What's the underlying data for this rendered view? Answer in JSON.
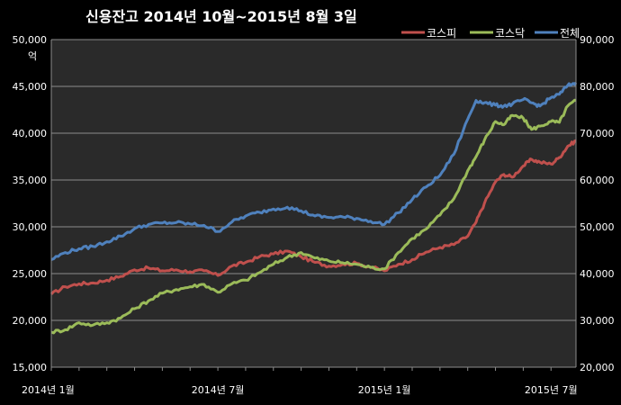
{
  "chart_data": {
    "type": "line",
    "title": "신용잔고 2014년 10월~2015년 8월 3일",
    "ylabel_left": "억",
    "ylim_left": [
      15000,
      50000
    ],
    "ylim_right": [
      20000,
      90000
    ],
    "yticks_left": [
      "15,000",
      "20,000",
      "25,000",
      "30,000",
      "35,000",
      "40,000",
      "45,000",
      "50,000"
    ],
    "yticks_right": [
      "20,000",
      "30,000",
      "40,000",
      "50,000",
      "60,000",
      "70,000",
      "80,000",
      "90,000"
    ],
    "xticks": [
      "2014년 1월",
      "2014년 7월",
      "2015년 1월",
      "2015년 7월"
    ],
    "xtick_positions": [
      0,
      6,
      12,
      18
    ],
    "xlim": [
      0,
      18.9
    ],
    "grid": true,
    "legend_position": "top-right",
    "series": [
      {
        "name": "코스피",
        "color": "#c0504d",
        "axis": "left",
        "x": [
          0,
          0.5,
          1,
          1.5,
          2,
          2.5,
          3,
          3.5,
          4,
          4.5,
          5,
          5.5,
          6,
          6.5,
          7,
          7.5,
          8,
          8.5,
          9,
          9.5,
          10,
          10.5,
          11,
          11.5,
          12,
          12.5,
          13,
          13.5,
          14,
          14.5,
          15,
          15.3,
          15.6,
          16,
          16.3,
          16.6,
          17,
          17.3,
          17.6,
          18,
          18.3,
          18.6,
          18.9
        ],
        "y": [
          22800,
          23600,
          23900,
          24000,
          24300,
          24700,
          25400,
          25600,
          25300,
          25400,
          25200,
          25300,
          24800,
          25800,
          26200,
          26800,
          27100,
          27400,
          26800,
          26200,
          25800,
          26000,
          26100,
          25700,
          25300,
          26000,
          26500,
          27300,
          27800,
          28100,
          29000,
          30500,
          32500,
          34800,
          35600,
          35300,
          36500,
          37200,
          36900,
          36700,
          37400,
          38600,
          39200
        ]
      },
      {
        "name": "코스닥",
        "color": "#9bbb59",
        "axis": "right",
        "x": [
          0,
          0.5,
          1,
          1.5,
          2,
          2.5,
          3,
          3.5,
          4,
          4.5,
          5,
          5.5,
          6,
          6.5,
          7,
          7.5,
          8,
          8.5,
          9,
          9.5,
          10,
          10.5,
          11,
          11.5,
          12,
          12.5,
          13,
          13.5,
          14,
          14.5,
          15,
          15.3,
          15.6,
          16,
          16.3,
          16.6,
          17,
          17.3,
          17.6,
          18,
          18.3,
          18.6,
          18.9
        ],
        "y": [
          27500,
          28000,
          29500,
          29000,
          29500,
          30500,
          32500,
          34200,
          35800,
          36600,
          37200,
          37700,
          36000,
          37800,
          38600,
          40200,
          42000,
          43500,
          44500,
          43300,
          42700,
          42300,
          42000,
          41300,
          41000,
          44500,
          47500,
          49500,
          52500,
          56000,
          62000,
          65000,
          68500,
          72500,
          71800,
          73800,
          73200,
          70800,
          71500,
          72500,
          72300,
          75800,
          77000
        ]
      },
      {
        "name": "전체",
        "color": "#4f81bd",
        "axis": "right",
        "x": [
          0,
          0.5,
          1,
          1.5,
          2,
          2.5,
          3,
          3.5,
          4,
          4.5,
          5,
          5.5,
          6,
          6.5,
          7,
          7.5,
          8,
          8.5,
          9,
          9.5,
          10,
          10.5,
          11,
          11.5,
          12,
          12.5,
          13,
          13.5,
          14,
          14.5,
          15,
          15.3,
          15.6,
          16,
          16.3,
          16.6,
          17,
          17.3,
          17.6,
          18,
          18.3,
          18.6,
          18.9
        ],
        "y": [
          43000,
          44500,
          45300,
          45800,
          46800,
          48000,
          49600,
          50500,
          50800,
          50900,
          50600,
          50300,
          49000,
          51000,
          52300,
          53100,
          53800,
          54200,
          53400,
          52300,
          52000,
          52100,
          51800,
          51200,
          50500,
          53000,
          55800,
          58500,
          61000,
          65500,
          73000,
          77000,
          76500,
          76000,
          75800,
          76200,
          77200,
          76500,
          75800,
          77600,
          78300,
          80200,
          80800
        ]
      }
    ]
  }
}
